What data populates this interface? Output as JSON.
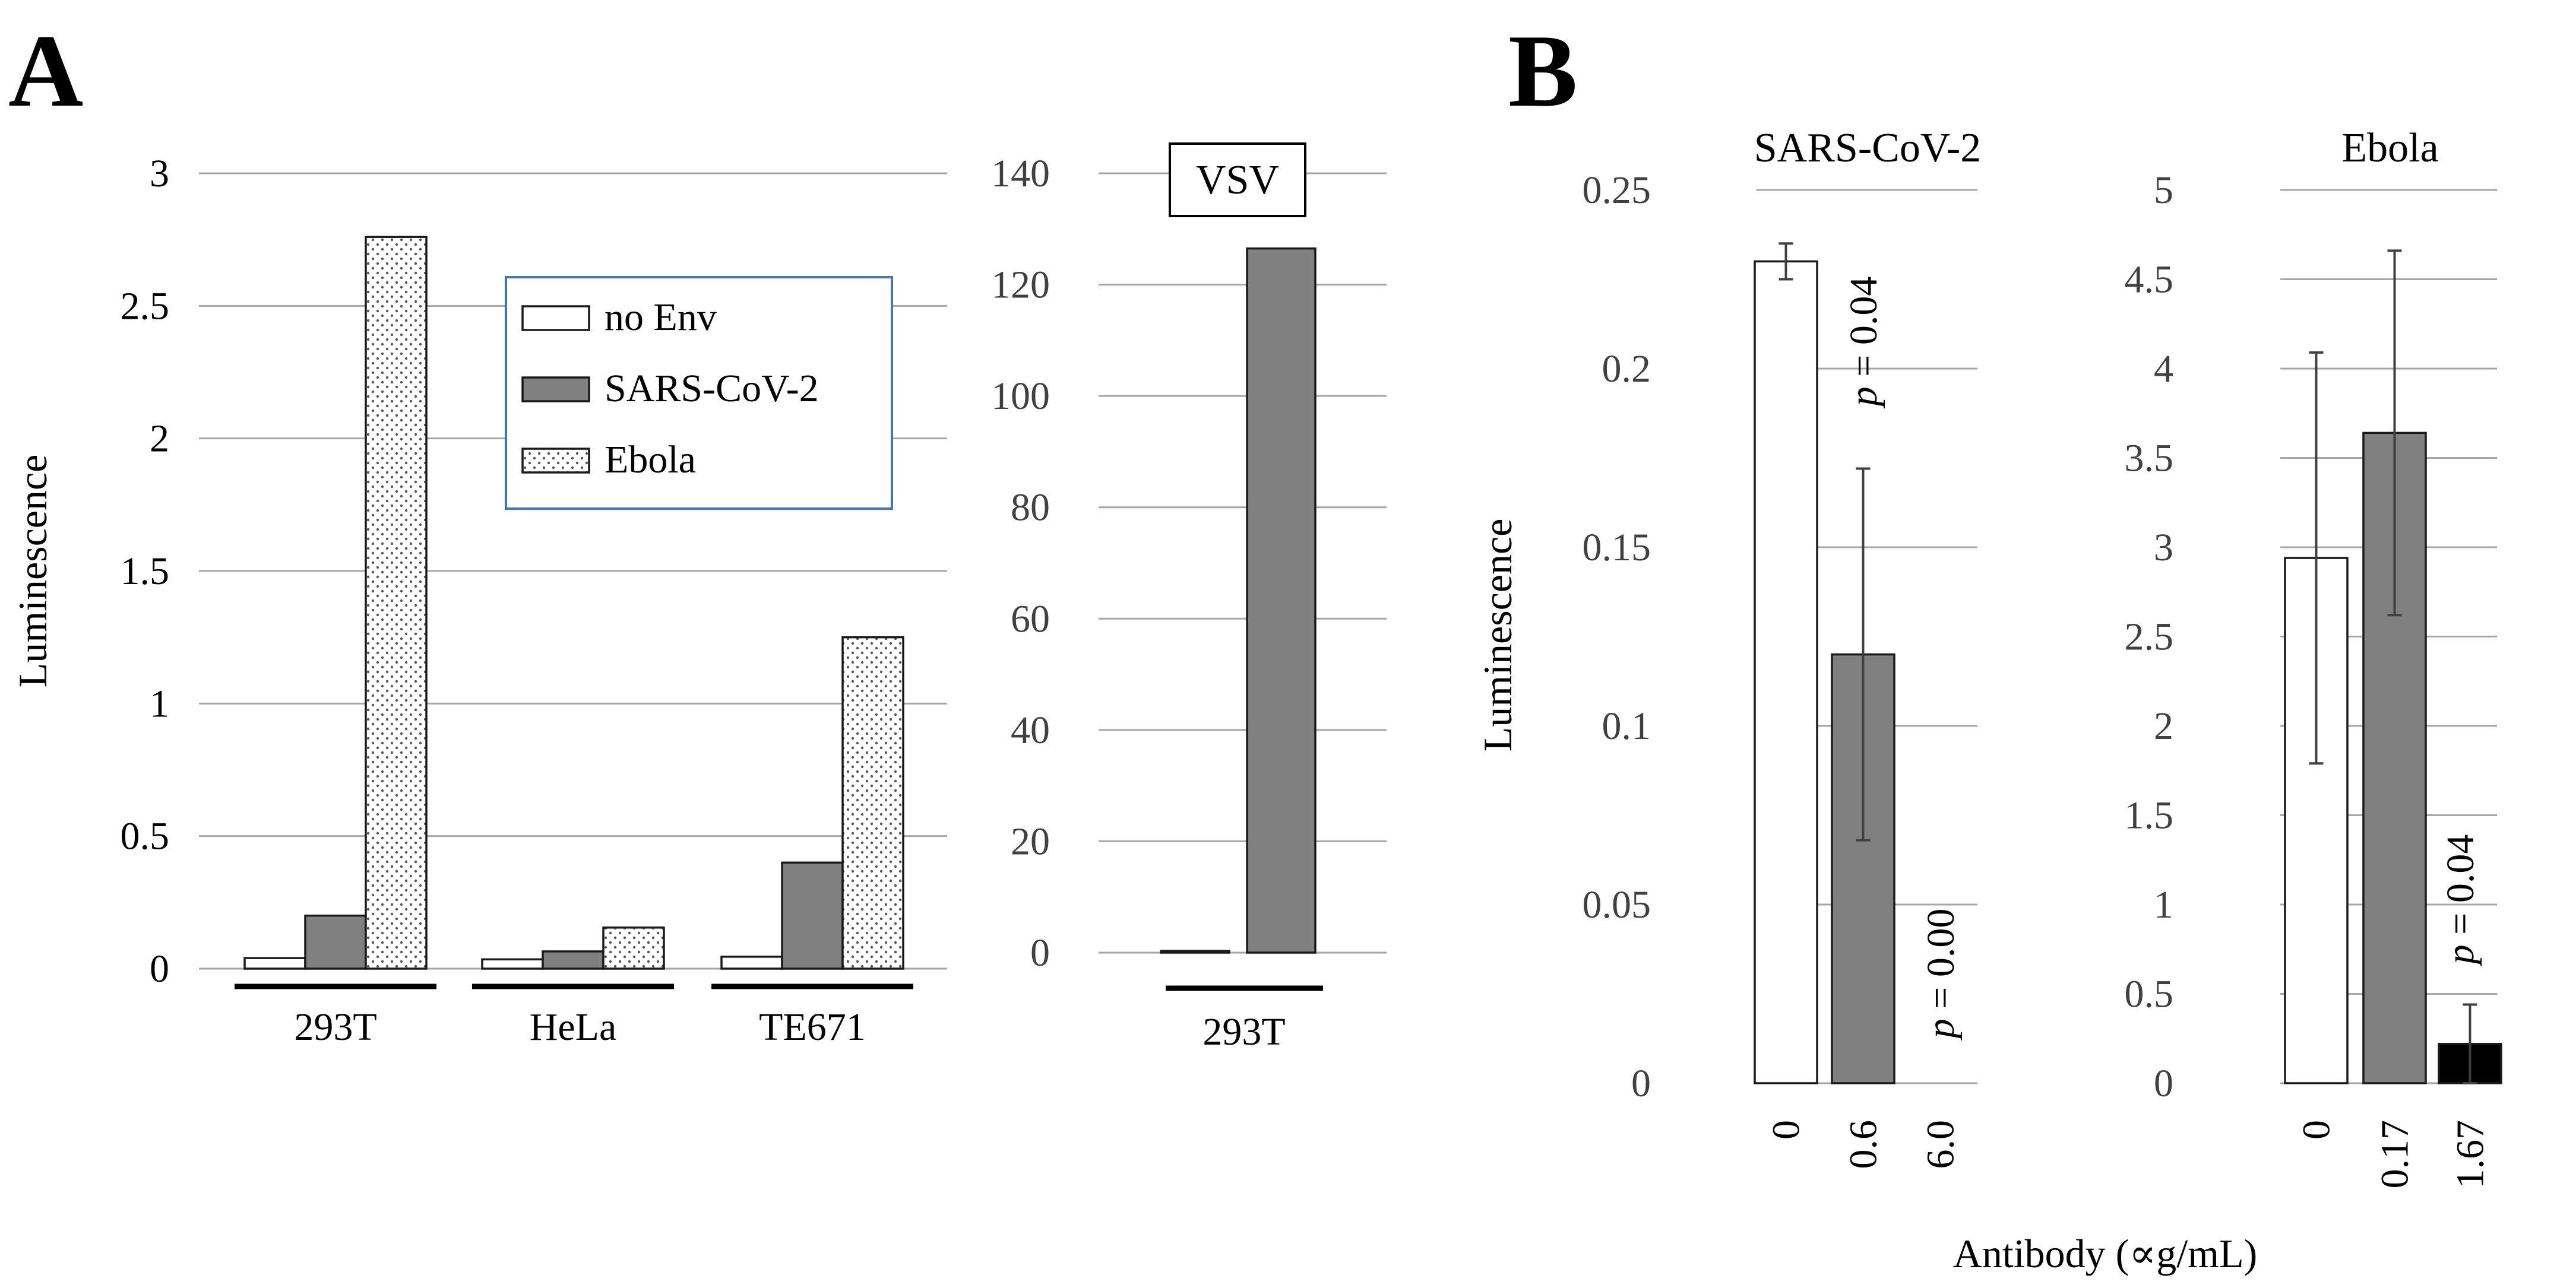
{
  "panel_labels": [
    "A",
    "B"
  ],
  "colors": {
    "no_env": "#ffffff",
    "sars": "#808080",
    "ebola_pattern": "#ffffff",
    "black": "#000000",
    "legend_border": "#4472c4",
    "grid": "#a6a6a6"
  },
  "legend": {
    "items": [
      {
        "label": "no Env",
        "style": "white"
      },
      {
        "label": "SARS-CoV-2",
        "style": "gray"
      },
      {
        "label": "Ebola",
        "style": "dotted"
      }
    ]
  },
  "chart_data": [
    {
      "id": "A-left",
      "type": "bar",
      "title": "",
      "ylabel": "Luminescence",
      "xlabel": "",
      "ylim": [
        0,
        3
      ],
      "yticks": [
        "0",
        "0.5",
        "1",
        "1.5",
        "2",
        "2.5",
        "3"
      ],
      "categories": [
        "293T",
        "HeLa",
        "TE671"
      ],
      "series": [
        {
          "name": "no Env",
          "style": "white",
          "values": [
            0.04,
            0.035,
            0.045
          ]
        },
        {
          "name": "SARS-CoV-2",
          "style": "gray",
          "values": [
            0.2,
            0.065,
            0.4
          ]
        },
        {
          "name": "Ebola",
          "style": "dotted",
          "values": [
            2.76,
            0.155,
            1.25
          ]
        }
      ],
      "grid": true
    },
    {
      "id": "A-right",
      "type": "bar",
      "title": "VSV",
      "ylabel": "",
      "ylim": [
        0,
        140
      ],
      "yticks": [
        "0",
        "20",
        "40",
        "60",
        "80",
        "100",
        "120",
        "140"
      ],
      "categories": [
        "293T"
      ],
      "series": [
        {
          "name": "no Env",
          "style": "white",
          "values": [
            0.3
          ]
        },
        {
          "name": "VSV",
          "style": "gray",
          "values": [
            126.5
          ]
        }
      ],
      "grid": true
    },
    {
      "id": "B-left",
      "type": "bar",
      "title": "SARS-CoV-2",
      "ylabel": "Luminescence",
      "xlabel": "Antibody (∝g/mL)",
      "ylim": [
        0,
        0.25
      ],
      "yticks": [
        "0",
        "0.05",
        "0.1",
        "0.15",
        "0.2",
        "0.25"
      ],
      "categories": [
        "0",
        "0.6",
        "6.0"
      ],
      "values": [
        0.23,
        0.12,
        0.0
      ],
      "errors": [
        0.005,
        0.052,
        0
      ],
      "styles": [
        "white",
        "gray",
        "white"
      ],
      "annotations": [
        "",
        "p = 0.04",
        "p = 0.00"
      ],
      "grid": true
    },
    {
      "id": "B-right",
      "type": "bar",
      "title": "Ebola",
      "ylabel": "",
      "xlabel": "Antibody (∝g/mL)",
      "ylim": [
        0,
        5
      ],
      "yticks": [
        "0",
        "0.5",
        "1",
        "1.5",
        "2",
        "2.5",
        "3",
        "3.5",
        "4",
        "4.5",
        "5"
      ],
      "categories": [
        "0",
        "0.17",
        "1.67"
      ],
      "values": [
        2.94,
        3.64,
        0.22
      ],
      "errors": [
        1.15,
        1.02,
        0.22
      ],
      "styles": [
        "white",
        "gray",
        "black"
      ],
      "annotations": [
        "",
        "",
        "p = 0.04"
      ],
      "grid": true
    }
  ],
  "shared_xlabel": "Antibody (∝g/mL)"
}
